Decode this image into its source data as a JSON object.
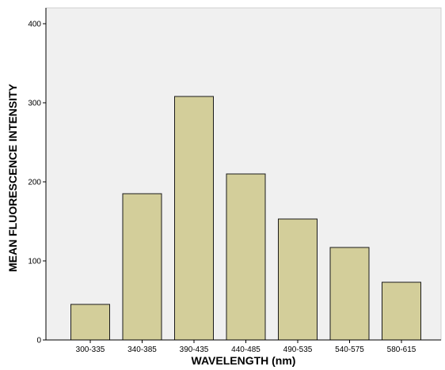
{
  "chart_data": {
    "type": "bar",
    "title": "",
    "xlabel": "WAVELENGTH (nm)",
    "ylabel": "MEAN FLUORESCENCE INTENSITY",
    "categories": [
      "300-335",
      "340-385",
      "390-435",
      "440-485",
      "490-535",
      "540-575",
      "580-615"
    ],
    "values": [
      45,
      185,
      308,
      210,
      153,
      117,
      73
    ],
    "ylim": [
      0,
      420
    ],
    "yticks": [
      "0",
      "100",
      "200",
      "300",
      "400"
    ],
    "grid": false,
    "legend": "none",
    "colors": {
      "plot_background": "#f0f0f0",
      "bar_fill": "#d3ce9a",
      "bar_stroke": "#1a1a1a",
      "axis": "#000000"
    }
  }
}
